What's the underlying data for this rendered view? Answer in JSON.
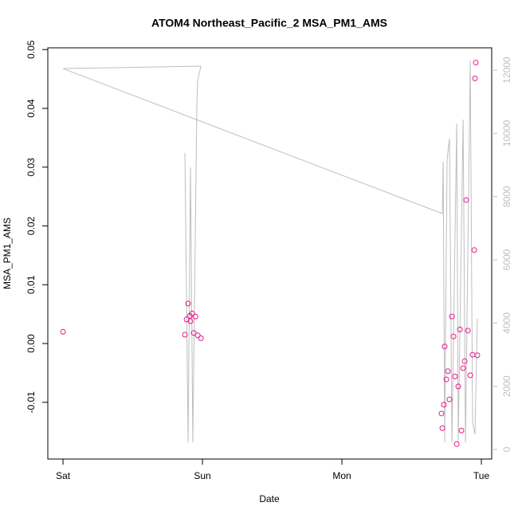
{
  "chart_data": {
    "type": "scatter",
    "title": "ATOM4 Northeast_Pacific_2 MSA_PM1_AMS",
    "xlabel": "Date",
    "ylabel": "MSA_PM1_AMS",
    "color": "#e8188c",
    "x": [
      0,
      0.897,
      0.886,
      0.909,
      0.914,
      0.926,
      0.949,
      0.874,
      0.937,
      0.966,
      0.989,
      2.737,
      2.72,
      2.714,
      2.731,
      2.749,
      2.76,
      2.771,
      2.789,
      2.8,
      2.811,
      2.823,
      2.834,
      2.846,
      2.857,
      2.869,
      2.88,
      2.891,
      2.903,
      2.92,
      2.937,
      2.949,
      2.954,
      2.96,
      2.971
    ],
    "values": [
      0.002,
      0.0068,
      0.0041,
      0.0047,
      0.0038,
      0.0051,
      0.0046,
      0.0015,
      0.0018,
      0.0014,
      0.0009,
      -0.0005,
      -0.0144,
      -0.0119,
      -0.0104,
      -0.0061,
      -0.0047,
      -0.0095,
      0.0046,
      0.0012,
      -0.0056,
      -0.0171,
      -0.0073,
      0.0024,
      -0.0148,
      -0.0042,
      -0.003,
      0.0244,
      0.0022,
      -0.0054,
      -0.0019,
      0.0159,
      0.0451,
      0.0478,
      -0.002
    ],
    "line": {
      "color": "#bebebe",
      "axis": "y2",
      "x": [
        0.874,
        0.897,
        0.914,
        0.931,
        0.96,
        0.966,
        0.989,
        0,
        2.72,
        2.726,
        2.737,
        2.754,
        2.771,
        2.789,
        2.823,
        2.834,
        2.869,
        2.886,
        2.92,
        2.937,
        2.954,
        2.971
      ],
      "values": [
        9377,
        227,
        8924,
        227,
        10991,
        11697,
        12125,
        12049,
        7462,
        9100,
        227,
        9176,
        9831,
        227,
        10310,
        227,
        10436,
        227,
        12302,
        857,
        479,
        4134
      ]
    },
    "xlim": [
      -0.109,
      3.074
    ],
    "xticks": [
      {
        "value": 0,
        "label": "Sat"
      },
      {
        "value": 1,
        "label": "Sun"
      },
      {
        "value": 2,
        "label": "Mon"
      },
      {
        "value": 3,
        "label": "Tue"
      }
    ],
    "ylim": [
      -0.01965,
      0.0503
    ],
    "yticks": [
      -0.01,
      {
        "value": 0,
        "label": "0.00"
      },
      0.01,
      0.02,
      0.03,
      0.04,
      0.05
    ],
    "y2lim": [
      -302,
      12706
    ],
    "y2ticks": [
      0,
      2000,
      4000,
      6000,
      8000,
      10000,
      12000
    ]
  }
}
